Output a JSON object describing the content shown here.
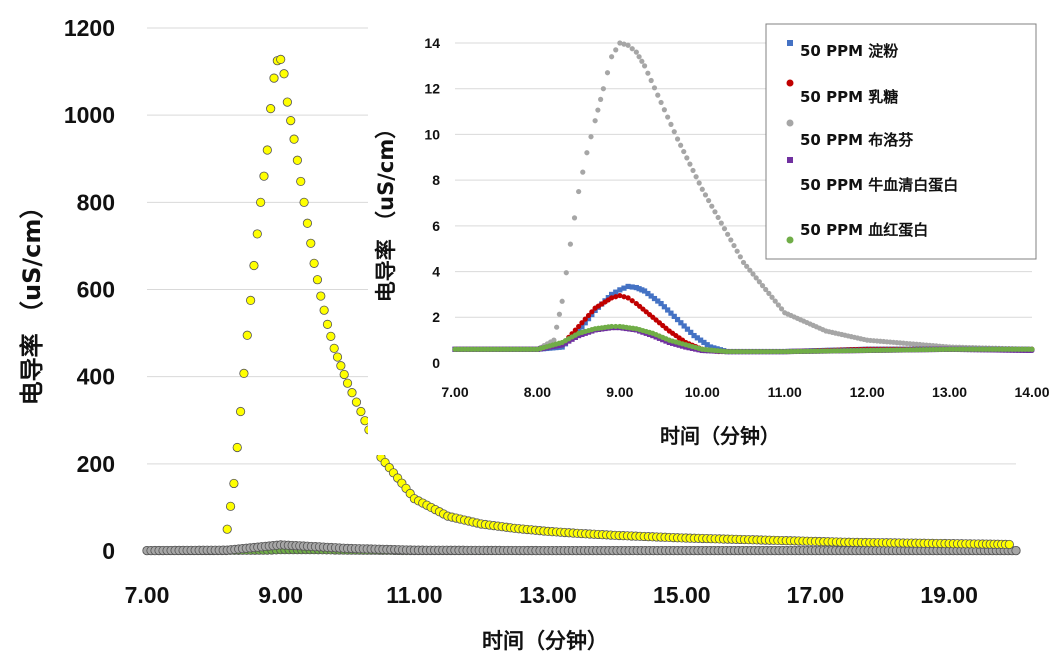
{
  "chart_data": [
    {
      "id": "main",
      "type": "scatter",
      "xlabel": "时间（分钟）",
      "ylabel": "电导率 （uS/cm）",
      "xlim": [
        7,
        20
      ],
      "ylim": [
        0,
        1200
      ],
      "xticks": [
        "7.00",
        "9.00",
        "11.00",
        "13.00",
        "15.00",
        "17.00",
        "19.00"
      ],
      "yticks": [
        "0",
        "200",
        "400",
        "600",
        "800",
        "1000",
        "1200"
      ],
      "series": [
        {
          "name": "50 PPM 血红蛋白",
          "color": "#70ad47",
          "shape": "circle",
          "x": [
            7.0,
            8.0,
            8.8,
            9.0,
            9.5,
            10.0,
            11.0,
            13.0,
            15.0,
            17.0,
            19.0,
            20.0
          ],
          "y": [
            1,
            1,
            2,
            3,
            3,
            2,
            1,
            1,
            1,
            1,
            1,
            1
          ]
        },
        {
          "name": "50 PPM 布洛芬",
          "color": "#a6a6a6",
          "shape": "circle",
          "x": [
            7.0,
            8.2,
            8.6,
            9.0,
            9.4,
            10.0,
            11.0,
            13.0,
            15.0,
            17.0,
            19.0,
            20.0
          ],
          "y": [
            1,
            2,
            8,
            14,
            11,
            6,
            2,
            1,
            1,
            1,
            1,
            1
          ]
        },
        {
          "name": "50 PPM 牛血清白蛋白",
          "color": "#ffff00",
          "shape": "circle",
          "x": [
            8.2,
            8.3,
            8.4,
            8.5,
            8.6,
            8.7,
            8.8,
            8.85,
            8.9,
            8.95,
            9.0,
            9.05,
            9.1,
            9.2,
            9.3,
            9.4,
            9.5,
            9.6,
            9.7,
            9.8,
            9.9,
            10.0,
            10.2,
            10.5,
            11.0,
            11.5,
            12.0,
            12.5,
            13.0,
            13.5,
            14.0,
            14.5,
            15.0,
            15.5,
            16.0,
            16.5,
            17.0,
            17.5,
            18.0,
            18.5,
            19.0,
            19.5,
            19.9
          ],
          "y": [
            50,
            155,
            320,
            495,
            655,
            800,
            920,
            1015,
            1085,
            1125,
            1128,
            1095,
            1030,
            945,
            848,
            752,
            660,
            585,
            520,
            465,
            425,
            385,
            320,
            215,
            120,
            80,
            62,
            52,
            45,
            40,
            36,
            33,
            30,
            28,
            26,
            24,
            22,
            20,
            19,
            18,
            17,
            16,
            15
          ]
        }
      ]
    },
    {
      "id": "inset",
      "type": "scatter",
      "xlabel": "时间（分钟）",
      "ylabel": "电导率 （uS/cm）",
      "xlim": [
        7,
        14
      ],
      "ylim": [
        0,
        14
      ],
      "xticks": [
        "7.00",
        "8.00",
        "9.00",
        "10.00",
        "11.00",
        "12.00",
        "13.00",
        "14.00"
      ],
      "yticks": [
        "0",
        "2",
        "4",
        "6",
        "8",
        "10",
        "12",
        "14"
      ],
      "legend": {
        "position": "top-right",
        "entries": [
          "50 PPM 淀粉",
          "50 PPM 乳糖",
          "50 PPM 布洛芬",
          "50 PPM 牛血清白蛋白",
          "50 PPM 血红蛋白"
        ]
      },
      "series": [
        {
          "name": "50 PPM 布洛芬",
          "color": "#a6a6a6",
          "shape": "circle",
          "x": [
            7.0,
            8.0,
            8.2,
            8.3,
            8.4,
            8.5,
            8.6,
            8.7,
            8.8,
            8.9,
            9.0,
            9.1,
            9.2,
            9.3,
            9.5,
            9.7,
            10.0,
            10.5,
            11.0,
            11.5,
            12.0,
            13.0,
            14.0
          ],
          "y": [
            0.6,
            0.6,
            1.0,
            2.7,
            5.2,
            7.5,
            9.2,
            10.6,
            12.0,
            13.4,
            14.0,
            13.9,
            13.6,
            13.0,
            11.4,
            9.8,
            7.6,
            4.4,
            2.2,
            1.4,
            1.0,
            0.7,
            0.6
          ]
        },
        {
          "name": "50 PPM 淀粉",
          "color": "#4472c4",
          "shape": "square",
          "x": [
            7.0,
            8.0,
            8.3,
            8.5,
            8.7,
            8.9,
            9.0,
            9.1,
            9.2,
            9.3,
            9.5,
            9.7,
            9.9,
            10.1,
            10.3,
            11.0,
            12.0,
            13.0,
            14.0
          ],
          "y": [
            0.6,
            0.6,
            0.7,
            1.4,
            2.3,
            3.0,
            3.2,
            3.35,
            3.3,
            3.15,
            2.6,
            1.9,
            1.2,
            0.7,
            0.5,
            0.5,
            0.6,
            0.6,
            0.6
          ]
        },
        {
          "name": "50 PPM 乳糖",
          "color": "#c00000",
          "shape": "circle",
          "x": [
            7.0,
            8.0,
            8.3,
            8.5,
            8.7,
            8.9,
            9.0,
            9.1,
            9.2,
            9.4,
            9.6,
            9.8,
            10.0,
            10.2,
            11.0,
            12.0,
            13.0,
            14.0
          ],
          "y": [
            0.6,
            0.6,
            0.8,
            1.6,
            2.4,
            2.85,
            2.95,
            2.85,
            2.6,
            2.0,
            1.4,
            0.9,
            0.6,
            0.5,
            0.5,
            0.6,
            0.6,
            0.6
          ]
        },
        {
          "name": "50 PPM 牛血清白蛋白",
          "color": "#7030a0",
          "shape": "square",
          "x": [
            7.0,
            8.0,
            8.3,
            8.5,
            8.7,
            8.9,
            9.0,
            9.2,
            9.4,
            9.6,
            9.8,
            10.0,
            10.3,
            11.0,
            12.0,
            13.0,
            14.0
          ],
          "y": [
            0.6,
            0.6,
            0.8,
            1.2,
            1.45,
            1.55,
            1.55,
            1.45,
            1.2,
            0.9,
            0.7,
            0.55,
            0.5,
            0.5,
            0.55,
            0.6,
            0.55
          ]
        },
        {
          "name": "50 PPM 血红蛋白",
          "color": "#70ad47",
          "shape": "circle",
          "x": [
            7.0,
            8.0,
            8.3,
            8.5,
            8.7,
            8.9,
            9.0,
            9.2,
            9.4,
            9.6,
            9.8,
            10.0,
            10.3,
            11.0,
            12.0,
            13.0,
            14.0
          ],
          "y": [
            0.6,
            0.6,
            0.9,
            1.3,
            1.5,
            1.6,
            1.6,
            1.5,
            1.3,
            1.0,
            0.8,
            0.6,
            0.5,
            0.5,
            0.55,
            0.6,
            0.6
          ]
        }
      ]
    }
  ]
}
